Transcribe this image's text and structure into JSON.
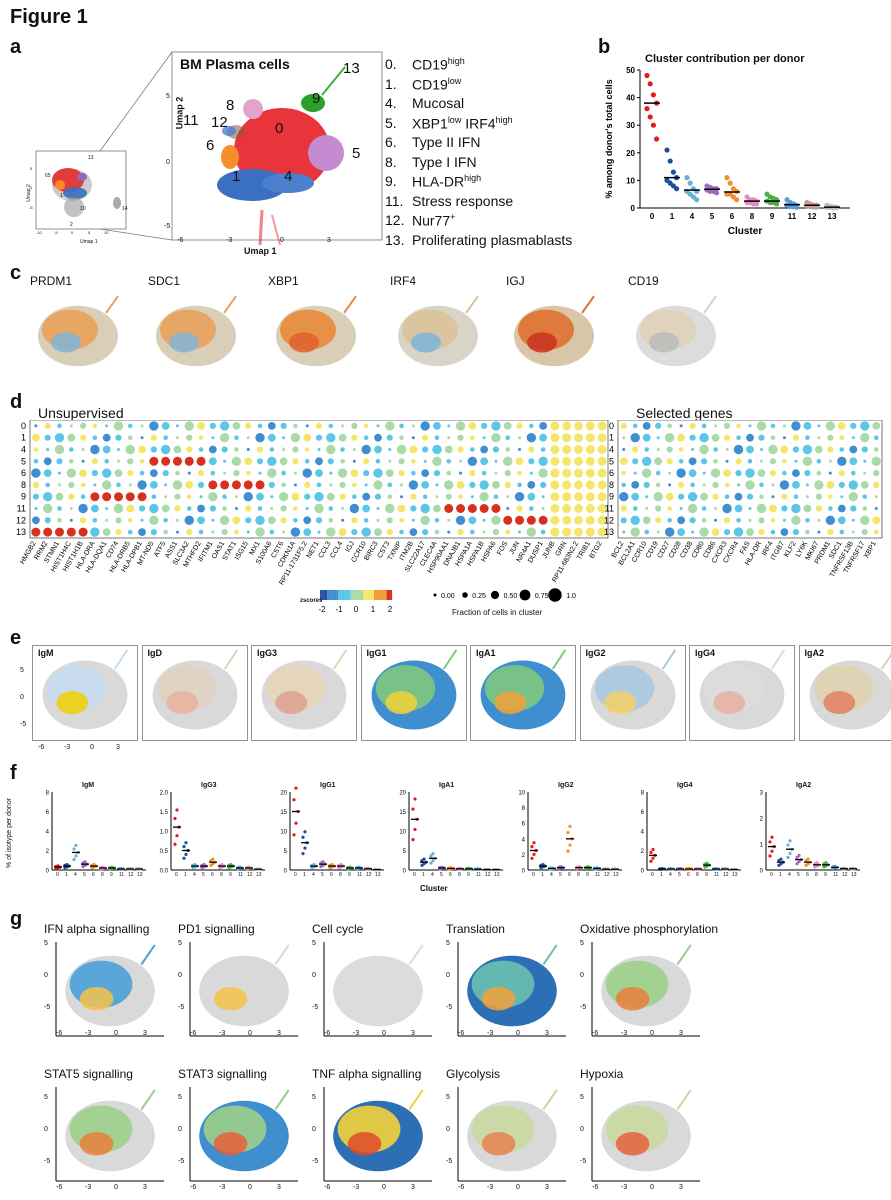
{
  "figure_title": "Figure 1",
  "panels": {
    "a": {
      "label": "a",
      "title": "BM Plasma cells",
      "x_axis": "Umap 1",
      "y_axis": "Umap 2",
      "x_ticks": [
        "-6",
        "-3",
        "0",
        "3"
      ],
      "y_ticks": [
        "5",
        "0",
        "-5"
      ],
      "mini_x_ticks": [
        "-10",
        "-5",
        "0",
        "5",
        "10"
      ],
      "mini_y_ticks": [
        "5",
        "0",
        "-5"
      ],
      "mini_x_axis": "Umap 1",
      "mini_y_axis": "Umap 2",
      "mini_cluster_labels": [
        "13",
        "65",
        "14",
        "10",
        "2",
        "1"
      ],
      "cluster_labels": [
        {
          "id": "13",
          "color": "#2ca02c"
        },
        {
          "id": "9",
          "color": "#2ca02c"
        },
        {
          "id": "8",
          "color": "#d62728"
        },
        {
          "id": "11",
          "color": "#1f77b4"
        },
        {
          "id": "12",
          "color": "#ff7f0e"
        },
        {
          "id": "0",
          "color": "#d62728"
        },
        {
          "id": "6",
          "color": "#ff7f0e"
        },
        {
          "id": "5",
          "color": "#9467bd"
        },
        {
          "id": "1",
          "color": "#1f77b4"
        },
        {
          "id": "4",
          "color": "#1f77b4"
        }
      ],
      "legend": [
        {
          "num": "0.",
          "text": "CD19",
          "sup": "high"
        },
        {
          "num": "1.",
          "text": "CD19",
          "sup": "low"
        },
        {
          "num": "4.",
          "text": "Mucosal",
          "sup": ""
        },
        {
          "num": "5.",
          "text": "XBP1",
          "sup": "low",
          "text2": " IRF4",
          "sup2": "high"
        },
        {
          "num": "6.",
          "text": "Type II IFN",
          "sup": ""
        },
        {
          "num": "8.",
          "text": "Type I IFN",
          "sup": ""
        },
        {
          "num": "9.",
          "text": "HLA-DR",
          "sup": "high"
        },
        {
          "num": "11.",
          "text": "Stress response",
          "sup": ""
        },
        {
          "num": "12.",
          "text": "Nur77",
          "sup": "+"
        },
        {
          "num": "13.",
          "text": "Proliferating plasmablasts",
          "sup": ""
        }
      ]
    },
    "b": {
      "label": "b"
    },
    "c": {
      "label": "c",
      "genes": [
        "PRDM1",
        "SDC1",
        "XBP1",
        "IRF4",
        "IGJ",
        "CD19"
      ]
    },
    "d": {
      "label": "d",
      "title_left": "Unsupervised",
      "title_right": "Selected genes",
      "rows": [
        "0",
        "1",
        "4",
        "5",
        "6",
        "8",
        "9",
        "11",
        "12",
        "13"
      ],
      "genes_left": [
        "HMGB2",
        "RRM2",
        "STMN1",
        "HIST1H4C",
        "HIST1H1B",
        "HLA-DRA",
        "HLA-DQA1",
        "CD74",
        "HLA-DRB5",
        "HLA-DPB1",
        "MT-ND5",
        "ATF5",
        "ASS1",
        "SLC3A2",
        "MTHFD2",
        "IFITM1",
        "OAS1",
        "STAT1",
        "ISG15",
        "MX1",
        "S100A6",
        "CST6",
        "CDKN1A",
        "RP11-1731F5.2",
        "NET1",
        "CCL3",
        "CCL4",
        "IGJ",
        "CCR10",
        "BIRC3",
        "CST3",
        "TXNIP",
        "ITM2B",
        "SLC22A17",
        "CLEC4A",
        "HSP90AA1",
        "DNAJB1",
        "HSPA1A",
        "HSPA1B",
        "HSPA6",
        "FOS",
        "JUN",
        "NR4A1",
        "DUSP1",
        "JUNB",
        "GRN",
        "RP11-683N2.2",
        "TRIB1",
        "BTG2"
      ],
      "genes_right": [
        "BCL2",
        "BCL2A1",
        "CCR10",
        "CD19",
        "CD27",
        "CD28",
        "CD38",
        "CD80",
        "CD86",
        "CXCR3",
        "CXCR4",
        "FAS",
        "HLA-DR",
        "IRF4",
        "ITGB7",
        "KLF2",
        "LY6K",
        "MKI67",
        "PRDM1",
        "SDC1",
        "TNFRSF13B",
        "TNFRSF17",
        "XBP1"
      ],
      "zscore_title": "zscores",
      "zscore_ticks": [
        "-2",
        "-1",
        "0",
        "1",
        "2"
      ],
      "fraction_ticks": [
        "0.00",
        "0.25",
        "0.50",
        "0.75",
        "1.0"
      ],
      "fraction_title": "Fraction of cells in cluster"
    },
    "e": {
      "label": "e",
      "isotypes": [
        "IgM",
        "IgD",
        "IgG3",
        "IgG1",
        "IgA1",
        "IgG2",
        "IgG4",
        "IgA2"
      ],
      "x_ticks": [
        "-6",
        "-3",
        "0",
        "3"
      ],
      "y_ticks": [
        "5",
        "0",
        "-5"
      ]
    },
    "f": {
      "label": "f",
      "y_axis": "% of isotype per donor",
      "x_axis": "Cluster",
      "clusters": [
        "0",
        "1",
        "4",
        "5",
        "6",
        "8",
        "9",
        "11",
        "12",
        "13"
      ],
      "plots": [
        {
          "title": "IgM",
          "yticks": [
            "0",
            "2",
            "4",
            "6",
            "8"
          ]
        },
        {
          "title": "IgG3",
          "yticks": [
            "0.0",
            "0.5",
            "1.0",
            "1.5",
            "2.0"
          ]
        },
        {
          "title": "IgG1",
          "yticks": [
            "0",
            "5",
            "10",
            "15",
            "20"
          ]
        },
        {
          "title": "IgA1",
          "yticks": [
            "0",
            "5",
            "10",
            "15",
            "20"
          ]
        },
        {
          "title": "IgG2",
          "yticks": [
            "0",
            "2",
            "4",
            "6",
            "8",
            "10"
          ]
        },
        {
          "title": "IgG4",
          "yticks": [
            "0",
            "2",
            "4",
            "6",
            "8"
          ]
        },
        {
          "title": "IgA2",
          "yticks": [
            "0",
            "1",
            "2",
            "3"
          ]
        }
      ]
    },
    "g": {
      "label": "g",
      "row1": [
        "IFN alpha signalling",
        "PD1 signalling",
        "Cell cycle",
        "Translation",
        "Oxidative phosphorylation"
      ],
      "row2": [
        "STAT5 signalling",
        "STAT3 signalling",
        "TNF alpha signalling",
        "Glycolysis",
        "Hypoxia"
      ],
      "x_ticks": [
        "-6",
        "-3",
        "0",
        "3"
      ],
      "y_ticks": [
        "5",
        "0",
        "-5"
      ]
    }
  },
  "chart_data": {
    "type": "scatter",
    "title": "Cluster contribution per donor",
    "xlabel": "Cluster",
    "ylabel": "% among donor's total cells",
    "ylim": [
      0,
      50
    ],
    "yticks": [
      "0",
      "10",
      "20",
      "30",
      "40",
      "50"
    ],
    "categories": [
      "0",
      "1",
      "4",
      "5",
      "6",
      "8",
      "9",
      "11",
      "12",
      "13"
    ],
    "colors": [
      "#e41a1c",
      "#1f4e9c",
      "#6baed6",
      "#9e6bbf",
      "#f28e2b",
      "#e78ac3",
      "#4daf4a",
      "#5b9bd5",
      "#c49c94",
      "#bdbdbd"
    ],
    "means": [
      38,
      11,
      6.5,
      6.8,
      5.8,
      2.5,
      2.5,
      1.2,
      1.0,
      0.3
    ],
    "points": [
      [
        48,
        45,
        41,
        38,
        36,
        33,
        30,
        25
      ],
      [
        21,
        17,
        13,
        11,
        10,
        9,
        8,
        7
      ],
      [
        11,
        9,
        7,
        6,
        6,
        5,
        4,
        3
      ],
      [
        8,
        7.5,
        7,
        7,
        6.5,
        6,
        6,
        5.5
      ],
      [
        11,
        9,
        7,
        6,
        5,
        5,
        4,
        3
      ],
      [
        4,
        3,
        3,
        2.5,
        2,
        2,
        1.5,
        1.5
      ],
      [
        5,
        4,
        3.5,
        3,
        2.5,
        2,
        2,
        1.5
      ],
      [
        3,
        2,
        1.5,
        1,
        1,
        0.5,
        0.5,
        0.3
      ],
      [
        2,
        1.5,
        1,
        1,
        0.8,
        0.5,
        0.4,
        0.3
      ],
      [
        1,
        0.6,
        0.4,
        0.3,
        0.2,
        0.2,
        0.1,
        0.1
      ]
    ]
  }
}
